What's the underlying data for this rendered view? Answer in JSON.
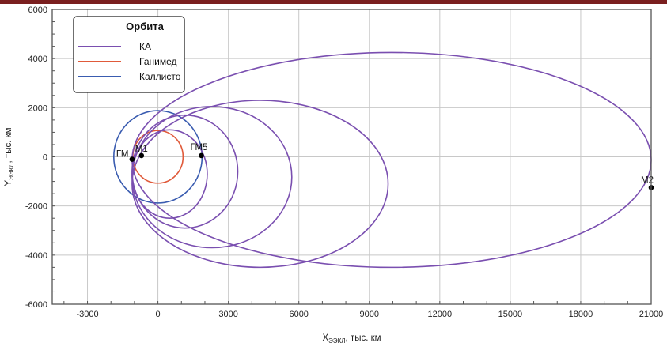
{
  "colors": {
    "topbar": "#7a1f1f",
    "grid": "#c8c8c8",
    "frame": "#555555",
    "ka": "#7a4fb0",
    "ganymede": "#e05a3a",
    "callisto": "#3a5cb0",
    "point": "#000000"
  },
  "chart_data": {
    "type": "line",
    "title": "",
    "xlabel": {
      "main": "X",
      "sub": "ЭЭКЛ",
      "rest": ", тыс. км"
    },
    "ylabel": {
      "main": "Y",
      "sub": "ЭЭКЛ",
      "rest": ", тыс. км"
    },
    "xlim": [
      -4500,
      21000
    ],
    "ylim": [
      -6000,
      6000
    ],
    "xticks": [
      -3000,
      0,
      3000,
      6000,
      9000,
      12000,
      15000,
      18000,
      21000
    ],
    "yticks": [
      -6000,
      -4000,
      -2000,
      0,
      2000,
      4000,
      6000
    ],
    "grid": true,
    "legend": {
      "title": "Орбита",
      "position": "top-left",
      "entries": [
        {
          "label": "КА",
          "color_key": "ka"
        },
        {
          "label": "Ганимед",
          "color_key": "ganymede"
        },
        {
          "label": "Каллисто",
          "color_key": "callisto"
        }
      ]
    },
    "series": [
      {
        "name": "Ганимед",
        "kind": "circle",
        "center": [
          0,
          0
        ],
        "radius": 1070,
        "color_key": "ganymede"
      },
      {
        "name": "Каллисто",
        "kind": "circle",
        "center": [
          0,
          0
        ],
        "radius": 1880,
        "color_key": "callisto"
      },
      {
        "name": "КА",
        "kind": "ellipse",
        "x_range": [
          -1100,
          21000
        ],
        "y_range": [
          -4500,
          4250
        ],
        "color_key": "ka"
      },
      {
        "name": "КА",
        "kind": "ellipse",
        "x_range": [
          -1100,
          9800
        ],
        "y_range": [
          -4500,
          2300
        ],
        "color_key": "ka"
      },
      {
        "name": "КА",
        "kind": "ellipse",
        "x_range": [
          -1100,
          5700
        ],
        "y_range": [
          -3700,
          2050
        ],
        "color_key": "ka"
      },
      {
        "name": "КА",
        "kind": "ellipse",
        "x_range": [
          -1100,
          3400
        ],
        "y_range": [
          -2900,
          1700
        ],
        "color_key": "ka"
      },
      {
        "name": "КА",
        "kind": "ellipse",
        "x_range": [
          -1100,
          2100
        ],
        "y_range": [
          -2500,
          1100
        ],
        "color_key": "ka"
      }
    ],
    "points": [
      {
        "label": "ГМ",
        "x": -1100,
        "y": -100
      },
      {
        "label": "М1",
        "x": -700,
        "y": 50
      },
      {
        "label": "ГМ5",
        "x": 1850,
        "y": 50
      },
      {
        "label": "М2",
        "x": 21000,
        "y": -1250
      }
    ]
  }
}
